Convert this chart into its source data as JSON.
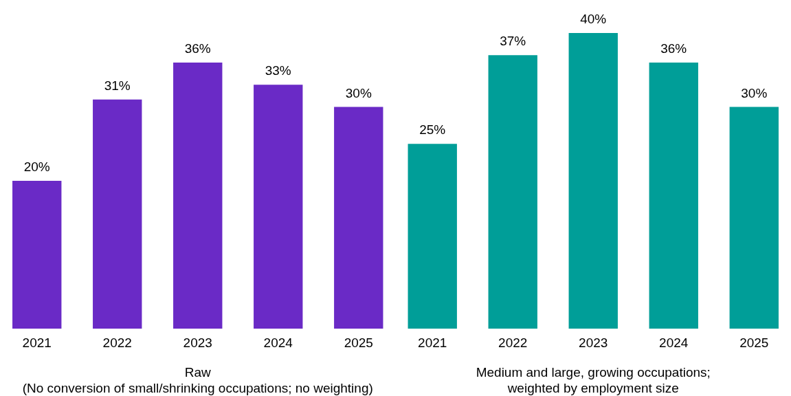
{
  "chart_data": [
    {
      "type": "bar",
      "xlabel": "Raw\n(No conversion of small/shrinking occupations; no weighting)",
      "categories": [
        "2021",
        "2022",
        "2023",
        "2024",
        "2025"
      ],
      "values": [
        20,
        31,
        36,
        33,
        30
      ],
      "value_labels": [
        "20%",
        "31%",
        "36%",
        "33%",
        "30%"
      ],
      "color": "#6a2ac6"
    },
    {
      "type": "bar",
      "xlabel": "Medium and large, growing occupations;\nweighted by employment size",
      "categories": [
        "2021",
        "2022",
        "2023",
        "2024",
        "2025"
      ],
      "values": [
        25,
        37,
        40,
        36,
        30
      ],
      "value_labels": [
        "25%",
        "37%",
        "40%",
        "36%",
        "30%"
      ],
      "color": "#009e98"
    }
  ]
}
